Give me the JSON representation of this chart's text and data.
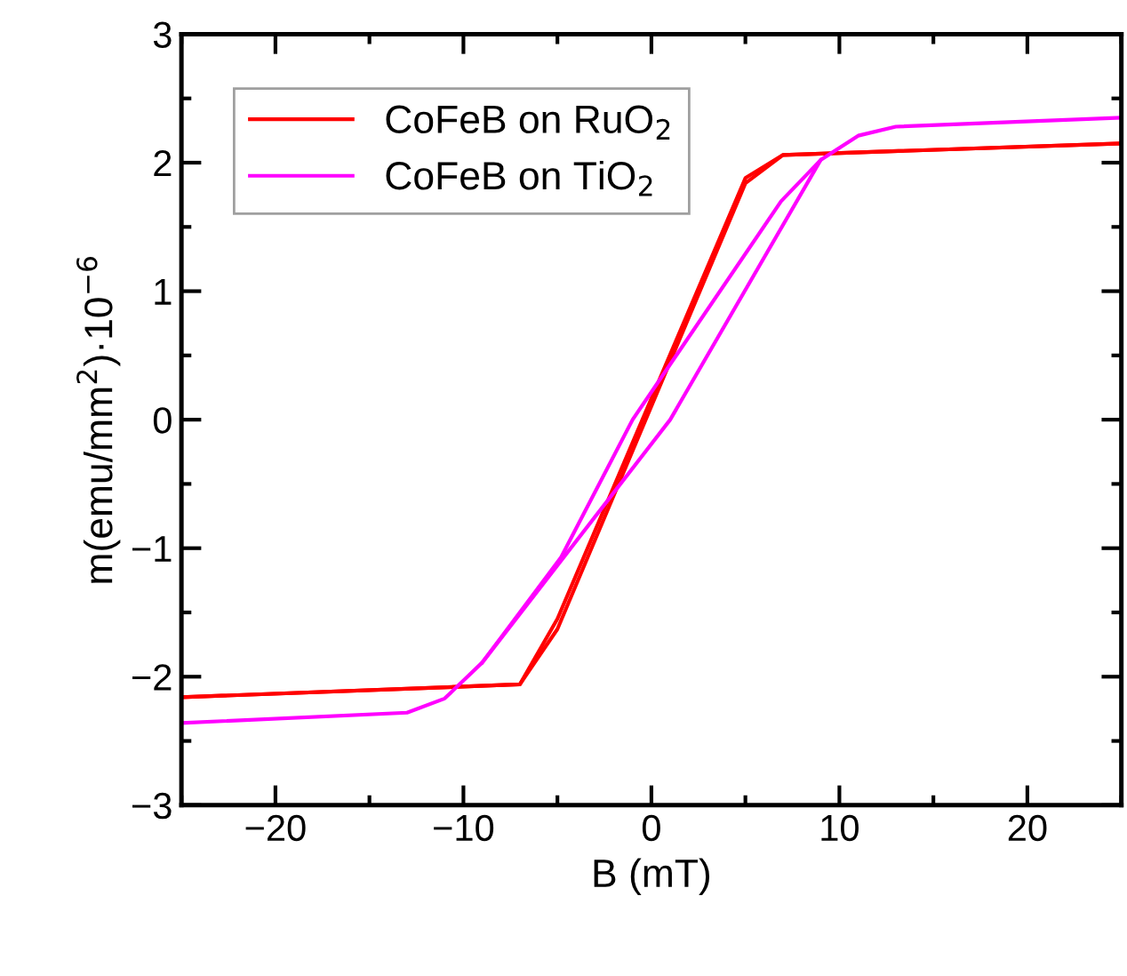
{
  "chart_data": {
    "type": "line",
    "xlabel": "B (mT)",
    "ylabel": "m(emu/mm$^{2}$)·10$^{−6}$",
    "xlim": [
      -25,
      25
    ],
    "ylim": [
      -3,
      3
    ],
    "xticks": [
      {
        "value": -20,
        "label": "−20"
      },
      {
        "value": -10,
        "label": "−10"
      },
      0,
      10,
      20
    ],
    "yticks": [
      {
        "value": -3,
        "label": "−3"
      },
      {
        "value": -2,
        "label": "−2"
      },
      {
        "value": -1,
        "label": "−1"
      },
      0,
      1,
      2,
      3
    ],
    "grid": false,
    "legend": "top left",
    "marker": "none",
    "line_style": "solid",
    "series": [
      {
        "name": "CoFeB on RuO$_{2}$",
        "color": "#ff0000",
        "x": [
          -25,
          -7,
          -5,
          5,
          7,
          25
        ],
        "values": [
          -2.16,
          -2.06,
          -1.55,
          1.88,
          2.06,
          2.15
        ]
      },
      {
        "color": "#ff0000",
        "x": [
          -25,
          -7,
          -5,
          5,
          7,
          25
        ],
        "values": [
          -2.16,
          -2.06,
          -1.63,
          1.84,
          2.06,
          2.15
        ]
      },
      {
        "name": "CoFeB on TiO$_{2}$",
        "color": "#ff00ff",
        "x": [
          -9,
          -4.8,
          -1.0,
          6.9,
          9
        ],
        "values": [
          -1.89,
          -1.07,
          0.0,
          1.7,
          2.02
        ]
      },
      {
        "color": "#ff00ff",
        "x": [
          -25,
          -13,
          -11,
          -9,
          1.0,
          9,
          11,
          13,
          25
        ],
        "values": [
          -2.36,
          -2.28,
          -2.17,
          -1.89,
          0.0,
          2.02,
          2.21,
          2.28,
          2.35
        ]
      }
    ]
  }
}
